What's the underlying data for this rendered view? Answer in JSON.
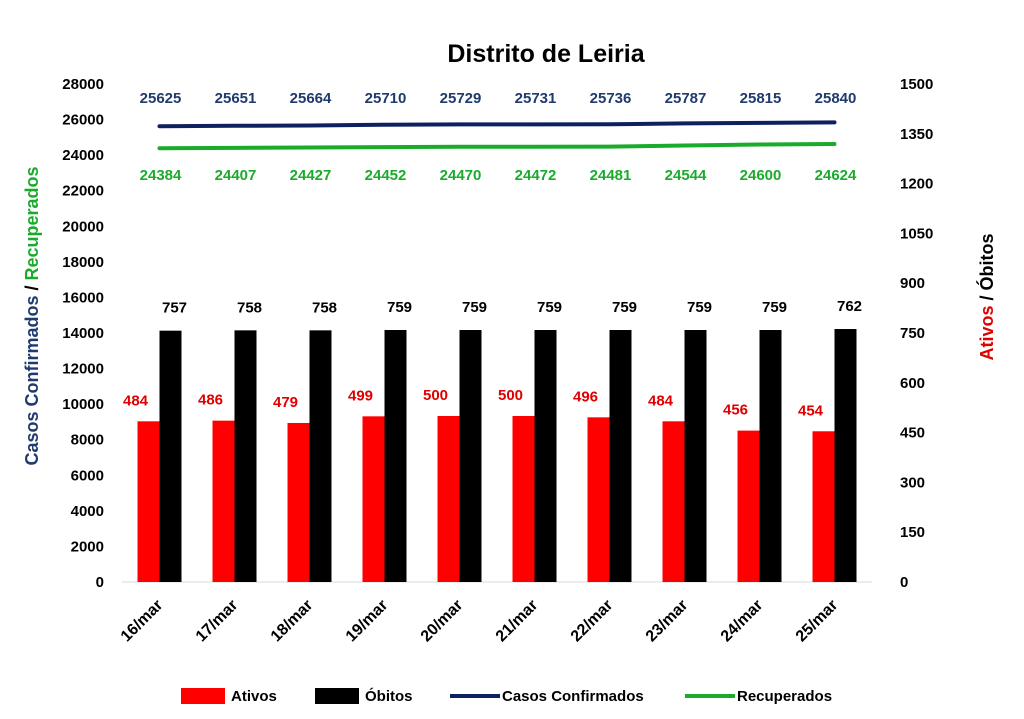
{
  "chart_data": {
    "type": "bar",
    "title": "Distrito de Leiria",
    "ylabel_left_part1": "Casos Confirmados",
    "ylabel_left_sep": " / ",
    "ylabel_left_part2": "Recuperados",
    "ylabel_right_part1": "Ativos",
    "ylabel_right_sep": " / ",
    "ylabel_right_part2": "Óbitos",
    "categories": [
      "16/mar",
      "17/mar",
      "18/mar",
      "19/mar",
      "20/mar",
      "21/mar",
      "22/mar",
      "23/mar",
      "24/mar",
      "25/mar"
    ],
    "ylim_left": [
      0,
      28000
    ],
    "ylim_right": [
      0,
      1500
    ],
    "yticks_left": [
      "0",
      "2000",
      "4000",
      "6000",
      "8000",
      "10000",
      "12000",
      "14000",
      "16000",
      "18000",
      "20000",
      "22000",
      "24000",
      "26000",
      "28000"
    ],
    "yticks_right": [
      "0",
      "150",
      "300",
      "450",
      "600",
      "750",
      "900",
      "1050",
      "1200",
      "1350",
      "1500"
    ],
    "grid": false,
    "legend_position": "bottom",
    "series": [
      {
        "name": "Ativos",
        "kind": "bar",
        "axis": "right",
        "color": "#ff0000",
        "label_color": "#e00000",
        "values": [
          484,
          486,
          479,
          499,
          500,
          500,
          496,
          484,
          456,
          454
        ]
      },
      {
        "name": "Óbitos",
        "kind": "bar",
        "axis": "right",
        "color": "#000000",
        "label_color": "#000000",
        "values": [
          757,
          758,
          758,
          759,
          759,
          759,
          759,
          759,
          759,
          762
        ]
      },
      {
        "name": "Casos Confirmados",
        "kind": "line",
        "axis": "left",
        "color": "#0d2160",
        "label_color": "#1f3a6e",
        "values": [
          25625,
          25651,
          25664,
          25710,
          25729,
          25731,
          25736,
          25787,
          25815,
          25840
        ]
      },
      {
        "name": "Recuperados",
        "kind": "line",
        "axis": "left",
        "color": "#1aab2c",
        "label_color": "#1aab2c",
        "values": [
          24384,
          24407,
          24427,
          24452,
          24470,
          24472,
          24481,
          24544,
          24600,
          24624
        ]
      }
    ]
  }
}
